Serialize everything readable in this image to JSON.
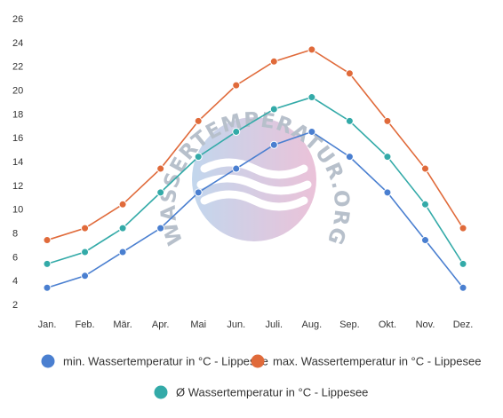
{
  "chart_data": {
    "type": "line",
    "categories": [
      "Jan.",
      "Feb.",
      "Mär.",
      "Apr.",
      "Mai",
      "Jun.",
      "Juli.",
      "Aug.",
      "Sep.",
      "Okt.",
      "Nov.",
      "Dez."
    ],
    "y_ticks": [
      2,
      4,
      6,
      8,
      10,
      12,
      14,
      16,
      18,
      20,
      22,
      24,
      26
    ],
    "ylim": [
      2,
      26
    ],
    "grid": false,
    "legend_position": "bottom",
    "series": [
      {
        "name": "min. Wassertemperatur in °C - Lippesee",
        "color": "#4a7fd0",
        "values": [
          3.4,
          4.4,
          6.4,
          8.4,
          11.4,
          13.4,
          15.4,
          16.5,
          14.4,
          11.4,
          7.4,
          3.4
        ]
      },
      {
        "name": "max. Wassertemperatur in °C - Lippesee",
        "color": "#e06a3a",
        "values": [
          7.4,
          8.4,
          10.4,
          13.4,
          17.4,
          20.4,
          22.4,
          23.4,
          21.4,
          17.4,
          13.4,
          8.4
        ]
      },
      {
        "name": "Ø Wassertemperatur in °C - Lippesee",
        "color": "#33aaa8",
        "values": [
          5.4,
          6.4,
          8.4,
          11.4,
          14.4,
          16.5,
          18.4,
          19.4,
          17.4,
          14.4,
          10.4,
          5.4
        ]
      }
    ]
  },
  "watermark": {
    "text": "WASSERTEMPERATUR.ORG"
  }
}
